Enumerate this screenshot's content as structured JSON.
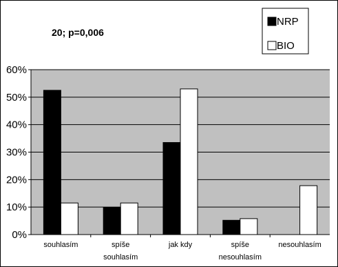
{
  "chart_data": {
    "type": "bar",
    "title": "20;  p=0,006",
    "xlabel": "",
    "ylabel": "",
    "ylim": [
      0,
      60
    ],
    "yticks": [
      "0%",
      "10%",
      "20%",
      "30%",
      "40%",
      "50%",
      "60%"
    ],
    "grid": true,
    "legend_position": "top-right",
    "plot_background": "#c0c0c0",
    "categories": [
      [
        "souhlasím"
      ],
      [
        "spíše",
        "souhlasím"
      ],
      [
        "jak kdy"
      ],
      [
        "spíše",
        "nesouhlasím"
      ],
      [
        "nesouhlasím"
      ]
    ],
    "series": [
      {
        "name": "NRP",
        "color": "#000000",
        "values": [
          52.5,
          9.8,
          33.5,
          5.2,
          0
        ]
      },
      {
        "name": "BIO",
        "color": "#ffffff",
        "values": [
          11.5,
          11.5,
          53,
          5.8,
          17.8
        ]
      }
    ]
  }
}
